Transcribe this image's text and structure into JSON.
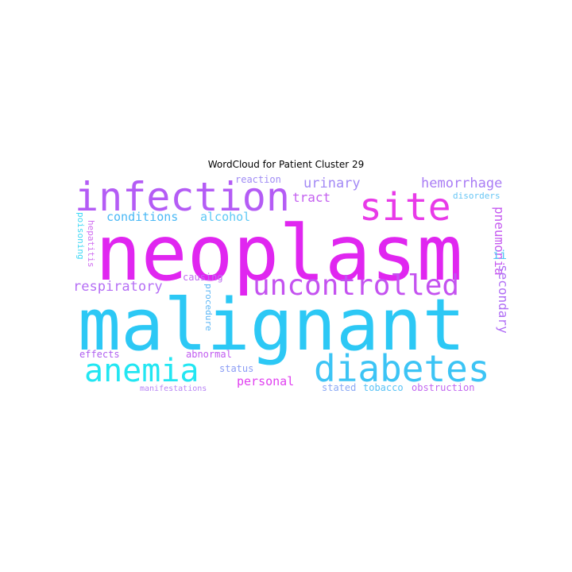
{
  "title": "WordCloud for Patient Cluster 29",
  "words": [
    {
      "text": "neoplasm",
      "color": "#e026f0"
    },
    {
      "text": "malignant",
      "color": "#2cc8f5"
    },
    {
      "text": "infection",
      "color": "#b45cf5"
    },
    {
      "text": "site",
      "color": "#e83ae8"
    },
    {
      "text": "uncontrolled",
      "color": "#c452f0"
    },
    {
      "text": "diabetes",
      "color": "#3cc4f5"
    },
    {
      "text": "anemia",
      "color": "#22e6f2"
    },
    {
      "text": "hemorrhage",
      "color": "#a97cf5"
    },
    {
      "text": "urinary",
      "color": "#a389f5"
    },
    {
      "text": "tract",
      "color": "#c460f0"
    },
    {
      "text": "conditions",
      "color": "#49b8f5"
    },
    {
      "text": "alcohol",
      "color": "#5cc8f5"
    },
    {
      "text": "respiratory",
      "color": "#b56ef5"
    },
    {
      "text": "personal",
      "color": "#e040f0"
    },
    {
      "text": "pneumonia",
      "color": "#c65cf0"
    },
    {
      "text": "secondary",
      "color": "#b06df5"
    },
    {
      "text": "ii",
      "color": "#52c8f5"
    },
    {
      "text": "reaction",
      "color": "#a08cf5"
    },
    {
      "text": "disorders",
      "color": "#68c6f5"
    },
    {
      "text": "poisoning",
      "color": "#40d8f5"
    },
    {
      "text": "hepatitis",
      "color": "#d06ef0"
    },
    {
      "text": "causing",
      "color": "#c06ef0"
    },
    {
      "text": "procedure",
      "color": "#5cb6f5"
    },
    {
      "text": "effects",
      "color": "#b060f0"
    },
    {
      "text": "abnormal",
      "color": "#c05af0"
    },
    {
      "text": "status",
      "color": "#8a9cf5"
    },
    {
      "text": "manifestations",
      "color": "#b884f5"
    },
    {
      "text": "stated",
      "color": "#8aa8f5"
    },
    {
      "text": "tobacco",
      "color": "#58c2f5"
    },
    {
      "text": "obstruction",
      "color": "#c266f0"
    }
  ]
}
